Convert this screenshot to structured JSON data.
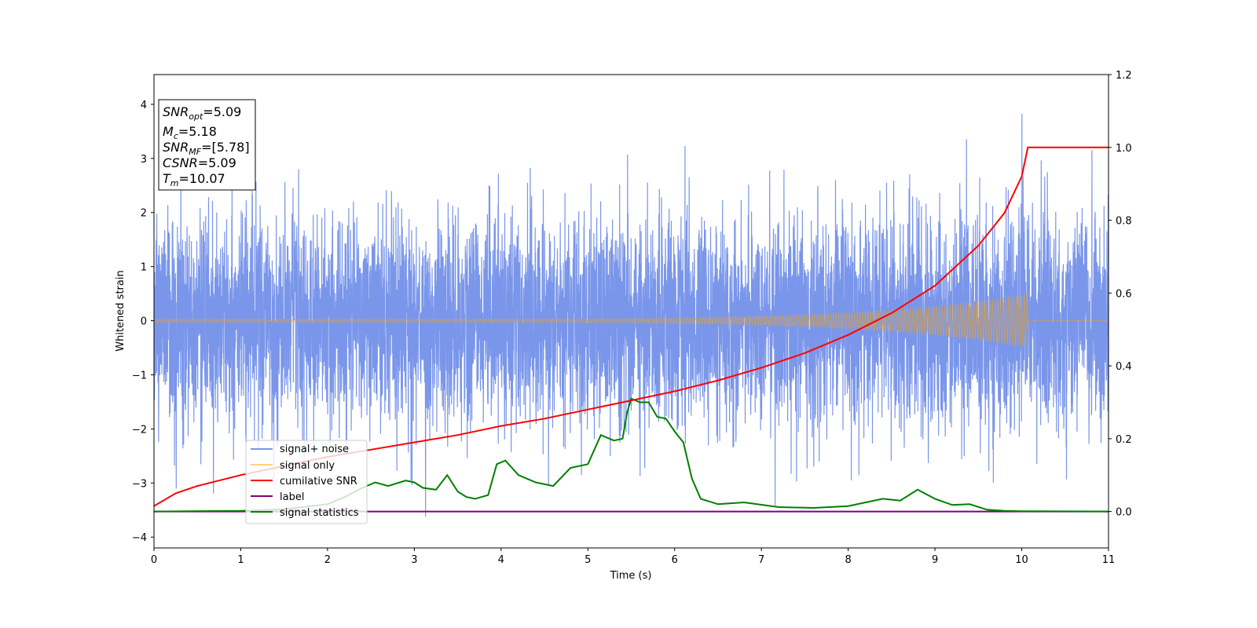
{
  "chart_data": {
    "type": "line",
    "xlabel": "Time (s)",
    "ylabel": "Whitened strain",
    "xlim": [
      0,
      11
    ],
    "ylim": [
      -4.2,
      4.55
    ],
    "y2lim": [
      -0.1,
      1.2
    ],
    "x_ticks": [
      0,
      1,
      2,
      3,
      4,
      5,
      6,
      7,
      8,
      9,
      10,
      11
    ],
    "y_ticks": [
      -4,
      -3,
      -2,
      -1,
      0,
      1,
      2,
      3,
      4
    ],
    "y2_ticks": [
      0.0,
      0.2,
      0.4,
      0.6,
      0.8,
      1.0,
      1.2
    ],
    "grid": false,
    "legend_position": "lower-left",
    "series": [
      {
        "name": "signal+ noise",
        "axis": "left",
        "color": "#4169e1",
        "description": "dense noise trace, approx. within ±2.5 with occasional spikes up to about 4.2 and down to about -3.8"
      },
      {
        "name": "signal only",
        "axis": "left",
        "color": "#ffa500",
        "chirp": {
          "start_time": 0.0,
          "merger_time": 10.07,
          "start_amplitude": 0.03,
          "end_amplitude": 0.5
        }
      },
      {
        "name": "cumilative SNR",
        "axis": "right",
        "color": "#ff0000",
        "x": [
          0,
          0.25,
          0.5,
          1,
          1.5,
          2,
          2.5,
          3,
          3.5,
          4,
          4.5,
          5,
          5.5,
          6,
          6.5,
          7,
          7.5,
          8,
          8.5,
          9,
          9.5,
          9.8,
          10,
          10.07,
          10.5,
          11
        ],
        "values": [
          0.015,
          0.05,
          0.07,
          0.1,
          0.125,
          0.15,
          0.17,
          0.19,
          0.21,
          0.235,
          0.255,
          0.28,
          0.305,
          0.33,
          0.36,
          0.395,
          0.435,
          0.485,
          0.545,
          0.62,
          0.73,
          0.82,
          0.92,
          1.0,
          1.0,
          1.0
        ]
      },
      {
        "name": "label",
        "axis": "right",
        "color": "#800080",
        "x": [
          0,
          11
        ],
        "values": [
          0.0,
          0.0
        ]
      },
      {
        "name": "signal statistics",
        "axis": "right",
        "color": "#008000",
        "x": [
          0,
          1,
          1.5,
          2,
          2.2,
          2.4,
          2.55,
          2.7,
          2.9,
          3.0,
          3.1,
          3.25,
          3.38,
          3.5,
          3.6,
          3.7,
          3.85,
          3.95,
          4.05,
          4.2,
          4.4,
          4.6,
          4.8,
          5.0,
          5.15,
          5.3,
          5.4,
          5.45,
          5.5,
          5.6,
          5.7,
          5.8,
          5.9,
          6.0,
          6.1,
          6.2,
          6.3,
          6.5,
          6.8,
          7.2,
          7.6,
          8.0,
          8.2,
          8.4,
          8.6,
          8.8,
          9.0,
          9.2,
          9.4,
          9.6,
          9.8,
          10.0,
          11.0
        ],
        "values": [
          0.0,
          0.002,
          0.006,
          0.02,
          0.04,
          0.065,
          0.08,
          0.07,
          0.085,
          0.08,
          0.065,
          0.06,
          0.1,
          0.055,
          0.04,
          0.035,
          0.045,
          0.13,
          0.14,
          0.1,
          0.08,
          0.07,
          0.12,
          0.13,
          0.21,
          0.195,
          0.2,
          0.27,
          0.31,
          0.3,
          0.3,
          0.26,
          0.255,
          0.22,
          0.19,
          0.09,
          0.035,
          0.02,
          0.025,
          0.012,
          0.01,
          0.015,
          0.025,
          0.035,
          0.03,
          0.06,
          0.035,
          0.018,
          0.02,
          0.005,
          0.002,
          0.001,
          0.0
        ]
      }
    ]
  },
  "annotation": {
    "snr_opt": {
      "symbol": "SNR",
      "sub": "opt",
      "value": "=5.09"
    },
    "mc": {
      "symbol": "M",
      "sub": "c",
      "value": "=5.18"
    },
    "snr_mf": {
      "symbol": "SNR",
      "sub": "MF",
      "value": "=[5.78]"
    },
    "csnr": {
      "symbol": "CSNR",
      "value": "=5.09"
    },
    "tm": {
      "symbol": "T",
      "sub": "m",
      "value": "=10.07"
    }
  }
}
